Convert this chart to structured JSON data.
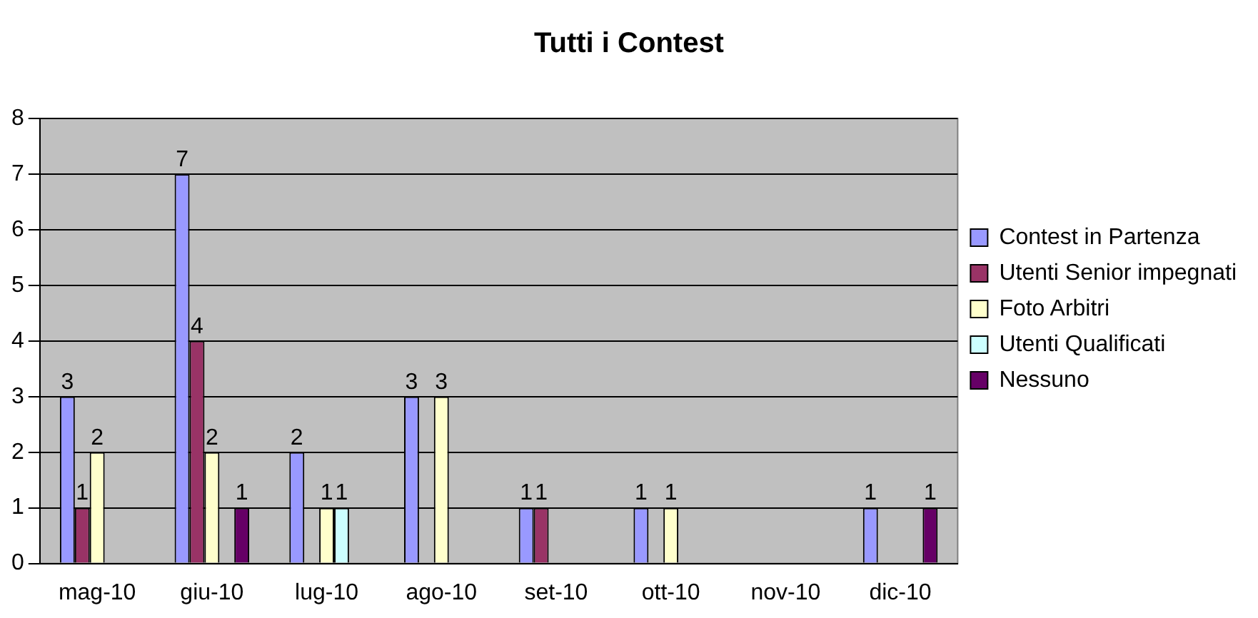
{
  "chart_data": {
    "type": "bar",
    "title": "Tutti i Contest",
    "categories": [
      "mag-10",
      "giu-10",
      "lug-10",
      "ago-10",
      "set-10",
      "ott-10",
      "nov-10",
      "dic-10"
    ],
    "series": [
      {
        "name": "Contest in Partenza",
        "color": "#9999ff",
        "values": [
          3,
          7,
          2,
          3,
          1,
          1,
          null,
          1
        ]
      },
      {
        "name": "Utenti Senior impegnati",
        "color": "#993366",
        "values": [
          1,
          4,
          null,
          null,
          1,
          null,
          null,
          null
        ]
      },
      {
        "name": "Foto Arbitri",
        "color": "#ffffcc",
        "values": [
          2,
          2,
          1,
          3,
          null,
          1,
          null,
          null
        ]
      },
      {
        "name": "Utenti Qualificati",
        "color": "#ccffff",
        "values": [
          null,
          null,
          1,
          null,
          null,
          null,
          null,
          null
        ]
      },
      {
        "name": "Nessuno",
        "color": "#660066",
        "values": [
          null,
          1,
          null,
          null,
          null,
          null,
          null,
          1
        ]
      }
    ],
    "ylim": [
      0,
      8
    ],
    "yticks": [
      0,
      1,
      2,
      3,
      4,
      5,
      6,
      7,
      8
    ],
    "grid": "y",
    "legend": "right",
    "data_labels": true
  }
}
